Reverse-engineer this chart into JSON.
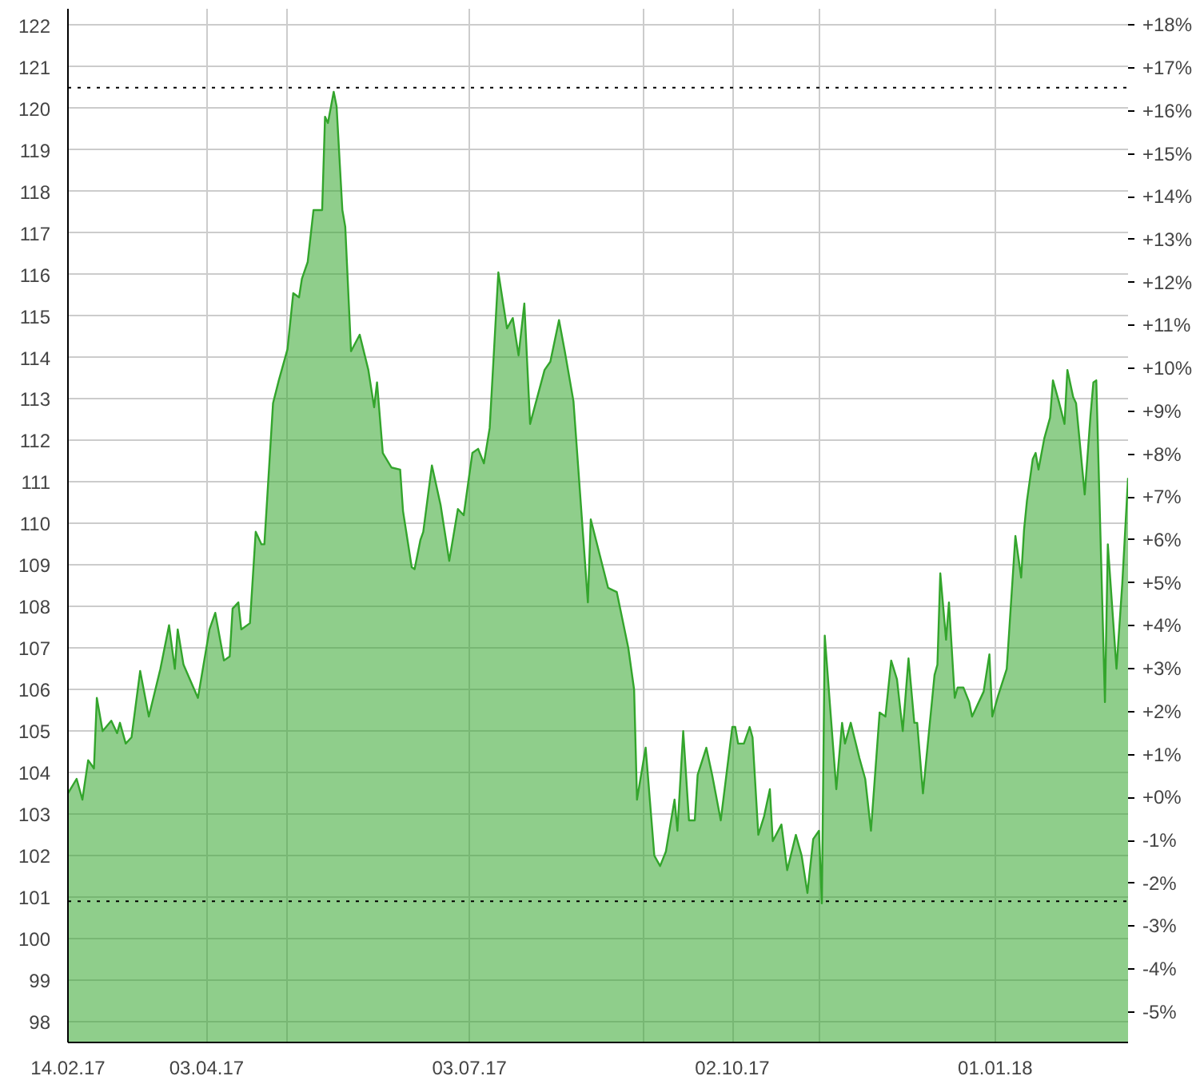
{
  "chart_data": {
    "type": "area",
    "x": [
      "2017-02-14",
      "2017-02-17",
      "2017-02-19",
      "2017-02-21",
      "2017-02-23",
      "2017-02-24",
      "2017-02-26",
      "2017-03-01",
      "2017-03-03",
      "2017-03-04",
      "2017-03-06",
      "2017-03-08",
      "2017-03-11",
      "2017-03-14",
      "2017-03-18",
      "2017-03-21",
      "2017-03-23",
      "2017-03-24",
      "2017-03-26",
      "2017-03-31",
      "2017-04-04",
      "2017-04-06",
      "2017-04-09",
      "2017-04-11",
      "2017-04-12",
      "2017-04-14",
      "2017-04-15",
      "2017-04-18",
      "2017-04-20",
      "2017-04-22",
      "2017-04-23",
      "2017-04-26",
      "2017-04-28",
      "2017-05-01",
      "2017-05-03",
      "2017-05-05",
      "2017-05-06",
      "2017-05-08",
      "2017-05-10",
      "2017-05-13",
      "2017-05-14",
      "2017-05-15",
      "2017-05-17",
      "2017-05-18",
      "2017-05-20",
      "2017-05-21",
      "2017-05-23",
      "2017-05-26",
      "2017-05-29",
      "2017-05-31",
      "2017-06-01",
      "2017-06-03",
      "2017-06-06",
      "2017-06-09",
      "2017-06-10",
      "2017-06-13",
      "2017-06-14",
      "2017-06-16",
      "2017-06-17",
      "2017-06-20",
      "2017-06-23",
      "2017-06-26",
      "2017-06-29",
      "2017-07-01",
      "2017-07-04",
      "2017-07-06",
      "2017-07-08",
      "2017-07-10",
      "2017-07-13",
      "2017-07-16",
      "2017-07-18",
      "2017-07-20",
      "2017-07-22",
      "2017-07-24",
      "2017-07-29",
      "2017-07-31",
      "2017-08-03",
      "2017-08-05",
      "2017-08-08",
      "2017-08-13",
      "2017-08-14",
      "2017-08-20",
      "2017-08-23",
      "2017-08-27",
      "2017-08-29",
      "2017-08-30",
      "2017-09-02",
      "2017-09-05",
      "2017-09-07",
      "2017-09-09",
      "2017-09-12",
      "2017-09-13",
      "2017-09-15",
      "2017-09-17",
      "2017-09-19",
      "2017-09-20",
      "2017-09-23",
      "2017-09-25",
      "2017-09-28",
      "2017-10-02",
      "2017-10-03",
      "2017-10-04",
      "2017-10-06",
      "2017-10-08",
      "2017-10-09",
      "2017-10-11",
      "2017-10-13",
      "2017-10-15",
      "2017-10-16",
      "2017-10-19",
      "2017-10-21",
      "2017-10-24",
      "2017-10-26",
      "2017-10-28",
      "2017-10-30",
      "2017-11-01",
      "2017-11-02",
      "2017-11-03",
      "2017-11-05",
      "2017-11-07",
      "2017-11-09",
      "2017-11-10",
      "2017-11-12",
      "2017-11-15",
      "2017-11-17",
      "2017-11-19",
      "2017-11-22",
      "2017-11-24",
      "2017-11-26",
      "2017-11-28",
      "2017-11-30",
      "2017-12-02",
      "2017-12-04",
      "2017-12-05",
      "2017-12-07",
      "2017-12-11",
      "2017-12-12",
      "2017-12-13",
      "2017-12-15",
      "2017-12-16",
      "2017-12-18",
      "2017-12-19",
      "2017-12-21",
      "2017-12-23",
      "2017-12-24",
      "2017-12-28",
      "2017-12-30",
      "2017-12-31",
      "2018-01-02",
      "2018-01-05",
      "2018-01-08",
      "2018-01-10",
      "2018-01-11",
      "2018-01-12",
      "2018-01-14",
      "2018-01-15",
      "2018-01-16",
      "2018-01-18",
      "2018-01-20",
      "2018-01-21",
      "2018-01-23",
      "2018-01-25",
      "2018-01-26",
      "2018-01-28",
      "2018-01-29",
      "2018-02-01",
      "2018-02-03",
      "2018-02-04",
      "2018-02-05",
      "2018-02-08",
      "2018-02-09",
      "2018-02-12",
      "2018-02-14",
      "2018-02-16"
    ],
    "series": [
      {
        "color": "#33a52c",
        "values": [
          103.5,
          103.85,
          103.35,
          104.3,
          104.1,
          105.8,
          105.0,
          105.25,
          104.95,
          105.2,
          104.7,
          104.85,
          106.45,
          105.35,
          106.5,
          107.55,
          106.5,
          107.45,
          106.6,
          105.8,
          107.45,
          107.85,
          106.7,
          106.8,
          107.95,
          108.1,
          107.45,
          107.6,
          109.8,
          109.5,
          109.5,
          112.9,
          113.45,
          114.2,
          115.55,
          115.45,
          115.9,
          116.3,
          117.55,
          117.55,
          119.8,
          119.65,
          120.4,
          120.05,
          117.55,
          117.15,
          114.15,
          114.55,
          113.7,
          112.8,
          113.4,
          111.7,
          111.35,
          111.3,
          110.3,
          108.95,
          108.9,
          109.6,
          109.8,
          111.4,
          110.45,
          109.1,
          110.35,
          110.2,
          111.7,
          111.8,
          111.45,
          112.3,
          116.05,
          114.7,
          114.95,
          114.05,
          115.3,
          112.4,
          113.7,
          113.9,
          114.9,
          114.15,
          112.95,
          108.1,
          110.1,
          108.45,
          108.35,
          107.0,
          106.0,
          103.35,
          104.6,
          102.0,
          101.75,
          102.1,
          103.35,
          102.6,
          105.0,
          102.85,
          102.85,
          103.95,
          104.6,
          103.95,
          102.85,
          105.1,
          105.1,
          104.7,
          104.7,
          105.1,
          104.85,
          102.5,
          102.95,
          103.6,
          102.35,
          102.75,
          101.65,
          102.5,
          102.0,
          101.1,
          102.4,
          102.6,
          100.85,
          107.3,
          105.45,
          103.6,
          105.2,
          104.7,
          105.2,
          104.35,
          103.85,
          102.6,
          105.45,
          105.35,
          106.7,
          106.25,
          105.0,
          106.75,
          105.2,
          105.2,
          103.5,
          106.35,
          106.6,
          108.8,
          107.2,
          108.1,
          105.8,
          106.05,
          106.05,
          105.7,
          105.35,
          105.95,
          106.85,
          105.35,
          105.85,
          106.5,
          109.7,
          108.7,
          109.85,
          110.55,
          111.55,
          111.7,
          111.3,
          112.05,
          112.55,
          113.45,
          112.95,
          112.4,
          113.7,
          113.05,
          112.9,
          110.7,
          112.6,
          113.4,
          113.45,
          105.7,
          109.5,
          106.5,
          108.55,
          111.1
        ]
      }
    ],
    "xlim": [
      "2017-02-14",
      "2018-02-16"
    ],
    "xticks": [
      {
        "value": "2017-02-14",
        "label": "14.02.17"
      },
      {
        "value": "2017-04-03",
        "label": "03.04.17"
      },
      {
        "value": "2017-05-01",
        "label": null
      },
      {
        "value": "2017-07-03",
        "label": "03.07.17"
      },
      {
        "value": "2017-09-01",
        "label": null
      },
      {
        "value": "2017-10-02",
        "label": "02.10.17"
      },
      {
        "value": "2017-11-01",
        "label": null
      },
      {
        "value": "2018-01-01",
        "label": "01.01.18"
      }
    ],
    "ylim": [
      97.5,
      122.4
    ],
    "yticks": [
      98,
      99,
      100,
      101,
      102,
      103,
      104,
      105,
      106,
      107,
      108,
      109,
      110,
      111,
      112,
      113,
      114,
      115,
      116,
      117,
      118,
      119,
      120,
      121,
      122
    ],
    "y2lim": [
      -5.71,
      18.38
    ],
    "y2ticks": [
      {
        "value": -5,
        "label": "-5%"
      },
      {
        "value": -4,
        "label": "-4%"
      },
      {
        "value": -3,
        "label": "-3%"
      },
      {
        "value": -2,
        "label": "-2%"
      },
      {
        "value": -1,
        "label": "-1%"
      },
      {
        "value": 0,
        "label": "+0%"
      },
      {
        "value": 1,
        "label": "+1%"
      },
      {
        "value": 2,
        "label": "+2%"
      },
      {
        "value": 3,
        "label": "+3%"
      },
      {
        "value": 4,
        "label": "+4%"
      },
      {
        "value": 5,
        "label": "+5%"
      },
      {
        "value": 6,
        "label": "+6%"
      },
      {
        "value": 7,
        "label": "+7%"
      },
      {
        "value": 8,
        "label": "+8%"
      },
      {
        "value": 9,
        "label": "+9%"
      },
      {
        "value": 10,
        "label": "+10%"
      },
      {
        "value": 11,
        "label": "+11%"
      },
      {
        "value": 12,
        "label": "+12%"
      },
      {
        "value": 13,
        "label": "+13%"
      },
      {
        "value": 14,
        "label": "+14%"
      },
      {
        "value": 15,
        "label": "+15%"
      },
      {
        "value": 16,
        "label": "+16%"
      },
      {
        "value": 17,
        "label": "+17%"
      },
      {
        "value": 18,
        "label": "+18%"
      }
    ],
    "ref_lines": [
      {
        "axis": "y",
        "value": 120.5,
        "color": "#000000",
        "line_style": "dotted"
      },
      {
        "axis": "y",
        "value": 100.9,
        "color": "#000000",
        "line_style": "dotted"
      }
    ],
    "grid": true
  }
}
